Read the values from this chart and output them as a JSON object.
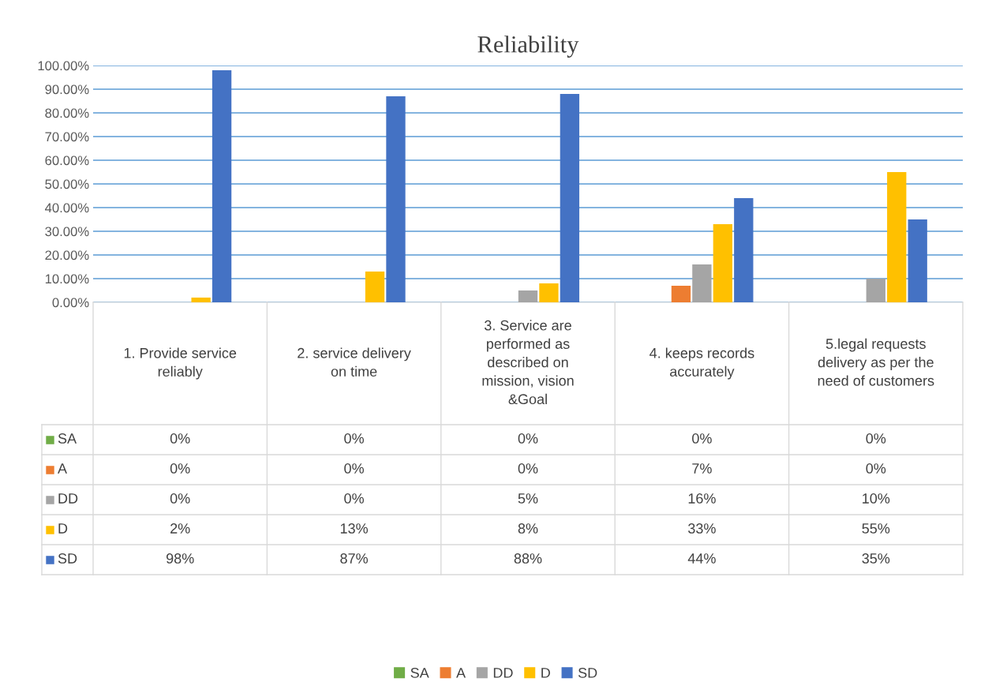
{
  "chart_data": {
    "type": "bar",
    "title": "Reliability",
    "categories": [
      "1. Provide service reliably",
      "2. service delivery on time",
      "3. Service are performed as described on mission, vision &Goal",
      "4. keeps records accurately",
      "5.legal requests delivery as per the need of customers"
    ],
    "series": [
      {
        "name": "SA",
        "color": "#70ad47",
        "values": [
          0,
          0,
          0,
          0,
          0
        ],
        "value_labels": [
          "0%",
          "0%",
          "0%",
          "0%",
          "0%"
        ]
      },
      {
        "name": "A",
        "color": "#ed7d31",
        "values": [
          0,
          0,
          0,
          7,
          0
        ],
        "value_labels": [
          "0%",
          "0%",
          "0%",
          "7%",
          "0%"
        ]
      },
      {
        "name": "DD",
        "color": "#a5a5a5",
        "values": [
          0,
          0,
          5,
          16,
          10
        ],
        "value_labels": [
          "0%",
          "0%",
          "5%",
          "16%",
          "10%"
        ]
      },
      {
        "name": "D",
        "color": "#ffc000",
        "values": [
          2,
          13,
          8,
          33,
          55
        ],
        "value_labels": [
          "2%",
          "13%",
          "8%",
          "33%",
          "55%"
        ]
      },
      {
        "name": "SD",
        "color": "#4472c4",
        "values": [
          98,
          87,
          88,
          44,
          35
        ],
        "value_labels": [
          "98%",
          "87%",
          "88%",
          "44%",
          "35%"
        ]
      }
    ],
    "ylim": [
      0,
      100
    ],
    "yticks": [
      {
        "value": 0,
        "label": "0.00%"
      },
      {
        "value": 10,
        "label": "10.00%"
      },
      {
        "value": 20,
        "label": "20.00%"
      },
      {
        "value": 30,
        "label": "30.00%"
      },
      {
        "value": 40,
        "label": "40.00%"
      },
      {
        "value": 50,
        "label": "50.00%"
      },
      {
        "value": 60,
        "label": "60.00%"
      },
      {
        "value": 70,
        "label": "70.00%"
      },
      {
        "value": 80,
        "label": "80.00%"
      },
      {
        "value": 90,
        "label": "90.00%"
      },
      {
        "value": 100,
        "label": "100.00%"
      }
    ],
    "grid": "y",
    "legend": "bottom"
  }
}
